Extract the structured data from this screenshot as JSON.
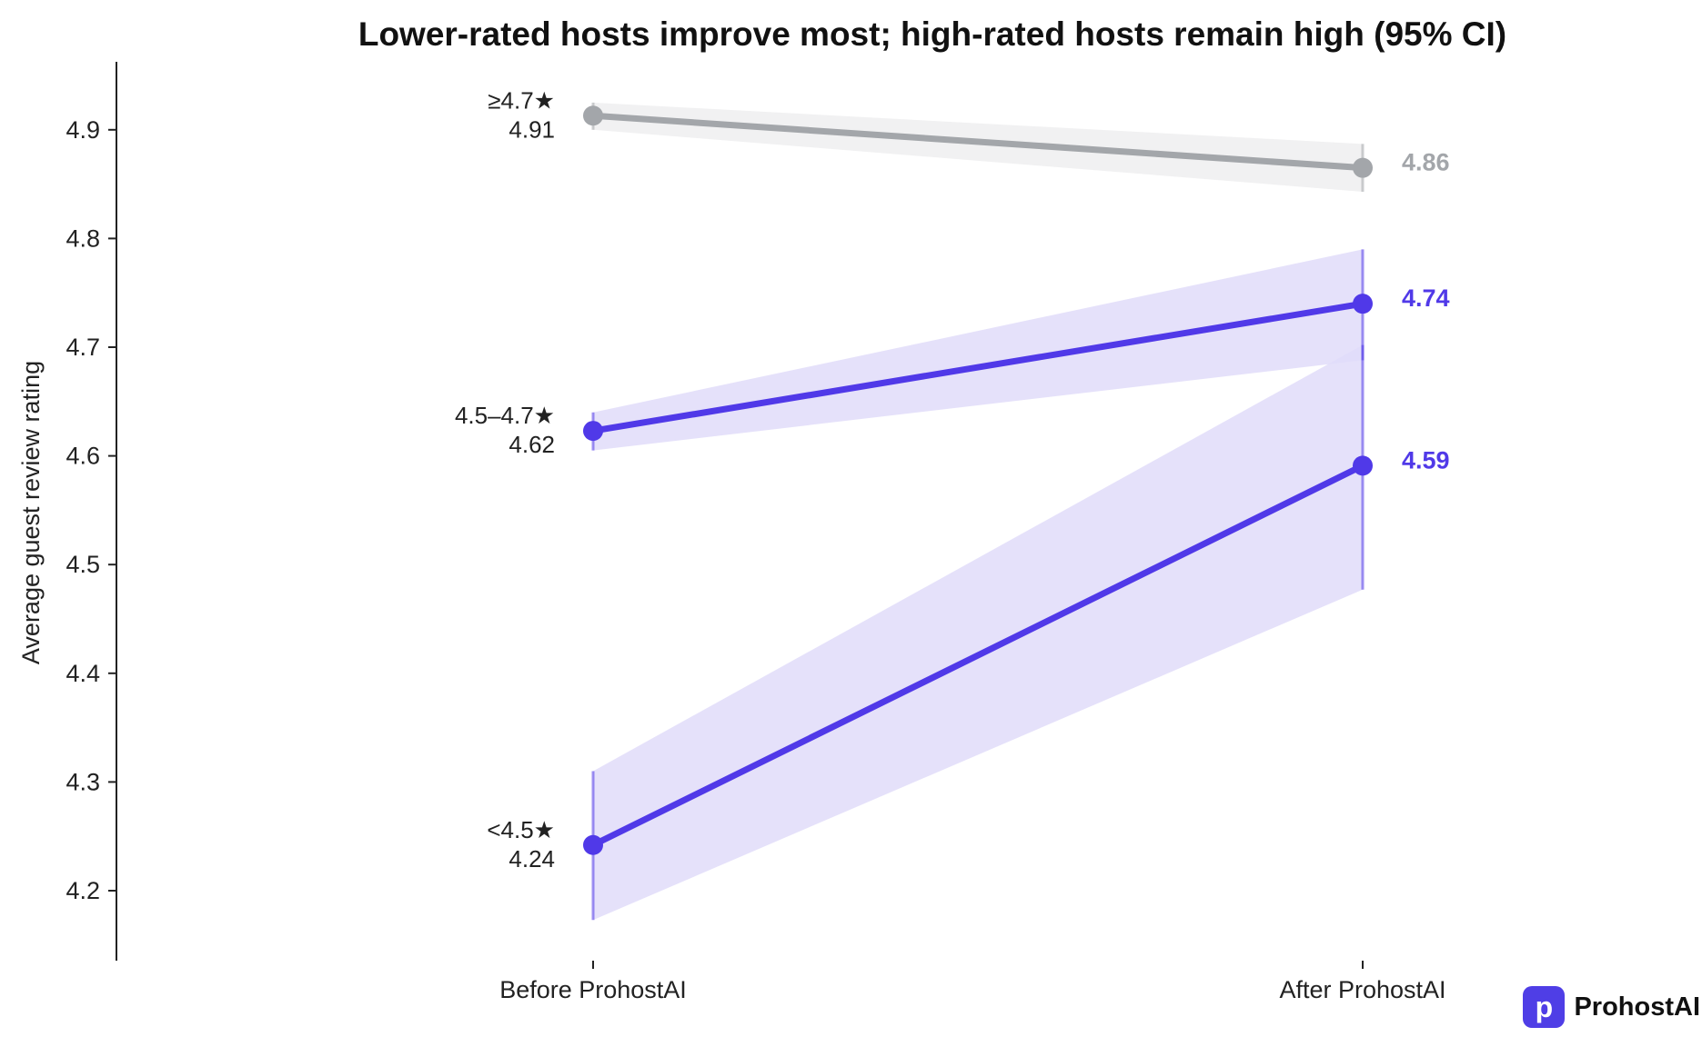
{
  "chart_data": {
    "type": "line",
    "title": "Lower-rated hosts improve most; high-rated hosts remain high (95% CI)",
    "ylabel": "Average guest review rating",
    "xlabel": "",
    "categories": [
      "Before ProhostAI",
      "After ProhostAI"
    ],
    "ylim": [
      4.135,
      4.97
    ],
    "yticks": [
      "4.2",
      "4.3",
      "4.4",
      "4.5",
      "4.6",
      "4.7",
      "4.8",
      "4.9"
    ],
    "grid": false,
    "series": [
      {
        "name": "≥4.7★",
        "values": [
          4.913,
          4.865
        ],
        "ci_low": [
          4.9,
          4.843
        ],
        "ci_high": [
          4.925,
          4.887
        ],
        "start_label": "4.91",
        "end_label": "4.86",
        "color": "#a3a6aa",
        "band_color": "#eeeef0"
      },
      {
        "name": "4.5–4.7★",
        "values": [
          4.623,
          4.74
        ],
        "ci_low": [
          4.605,
          4.688
        ],
        "ci_high": [
          4.64,
          4.79
        ],
        "start_label": "4.62",
        "end_label": "4.74",
        "color": "#5039e8",
        "band_color": "#e0dcf9"
      },
      {
        "name": "<4.5★",
        "values": [
          4.242,
          4.591
        ],
        "ci_low": [
          4.173,
          4.477
        ],
        "ci_high": [
          4.31,
          4.702
        ],
        "start_label": "4.24",
        "end_label": "4.59",
        "color": "#5039e8",
        "band_color": "#e0dcf9"
      }
    ]
  },
  "brand": {
    "logo_letter": "p",
    "name": "ProhostAI",
    "color": "#4f3ee6"
  }
}
